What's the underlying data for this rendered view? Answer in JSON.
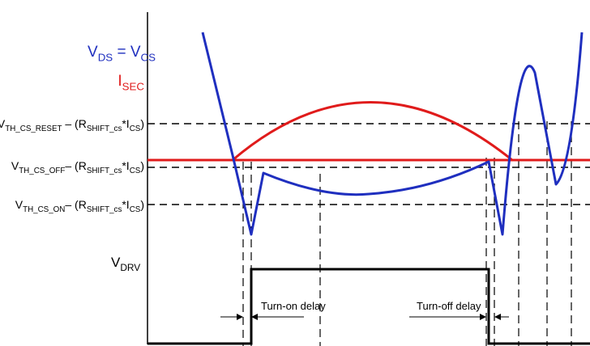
{
  "labels": [
    {
      "color": "#1f2fbf",
      "segments": [
        {
          "text": "V"
        },
        {
          "text": "DS",
          "sub": true
        },
        {
          "text": " = V"
        },
        {
          "text": "CS",
          "sub": true
        }
      ]
    },
    {
      "color": "#e01b1b",
      "segments": [
        {
          "text": "I"
        },
        {
          "text": "SEC",
          "sub": true
        }
      ]
    },
    {
      "color": "#000000",
      "segments": [
        {
          "text": "V"
        },
        {
          "text": "TH_CS_RESET",
          "sub": true
        },
        {
          "text": " – (R"
        },
        {
          "text": "SHIFT_cs",
          "sub": true
        },
        {
          "text": "*I"
        },
        {
          "text": "CS",
          "sub": true
        },
        {
          "text": ")"
        }
      ]
    },
    {
      "color": "#000000",
      "segments": [
        {
          "text": "V"
        },
        {
          "text": "TH_CS_OFF",
          "sub": true
        },
        {
          "text": "– (R"
        },
        {
          "text": "SHIFT_cs",
          "sub": true
        },
        {
          "text": "*I"
        },
        {
          "text": "CS",
          "sub": true
        },
        {
          "text": ")"
        }
      ]
    },
    {
      "color": "#000000",
      "segments": [
        {
          "text": "V"
        },
        {
          "text": "TH_CS_ON",
          "sub": true
        },
        {
          "text": "– (R"
        },
        {
          "text": "SHIFT_cs",
          "sub": true
        },
        {
          "text": "*I"
        },
        {
          "text": "CS",
          "sub": true
        },
        {
          "text": ")"
        }
      ]
    },
    {
      "color": "#000000",
      "segments": [
        {
          "text": "V"
        },
        {
          "text": "DRV",
          "sub": true
        }
      ]
    }
  ],
  "delays": {
    "turn_on": "Turn-on delay",
    "turn_off": "Turn-off delay"
  }
}
